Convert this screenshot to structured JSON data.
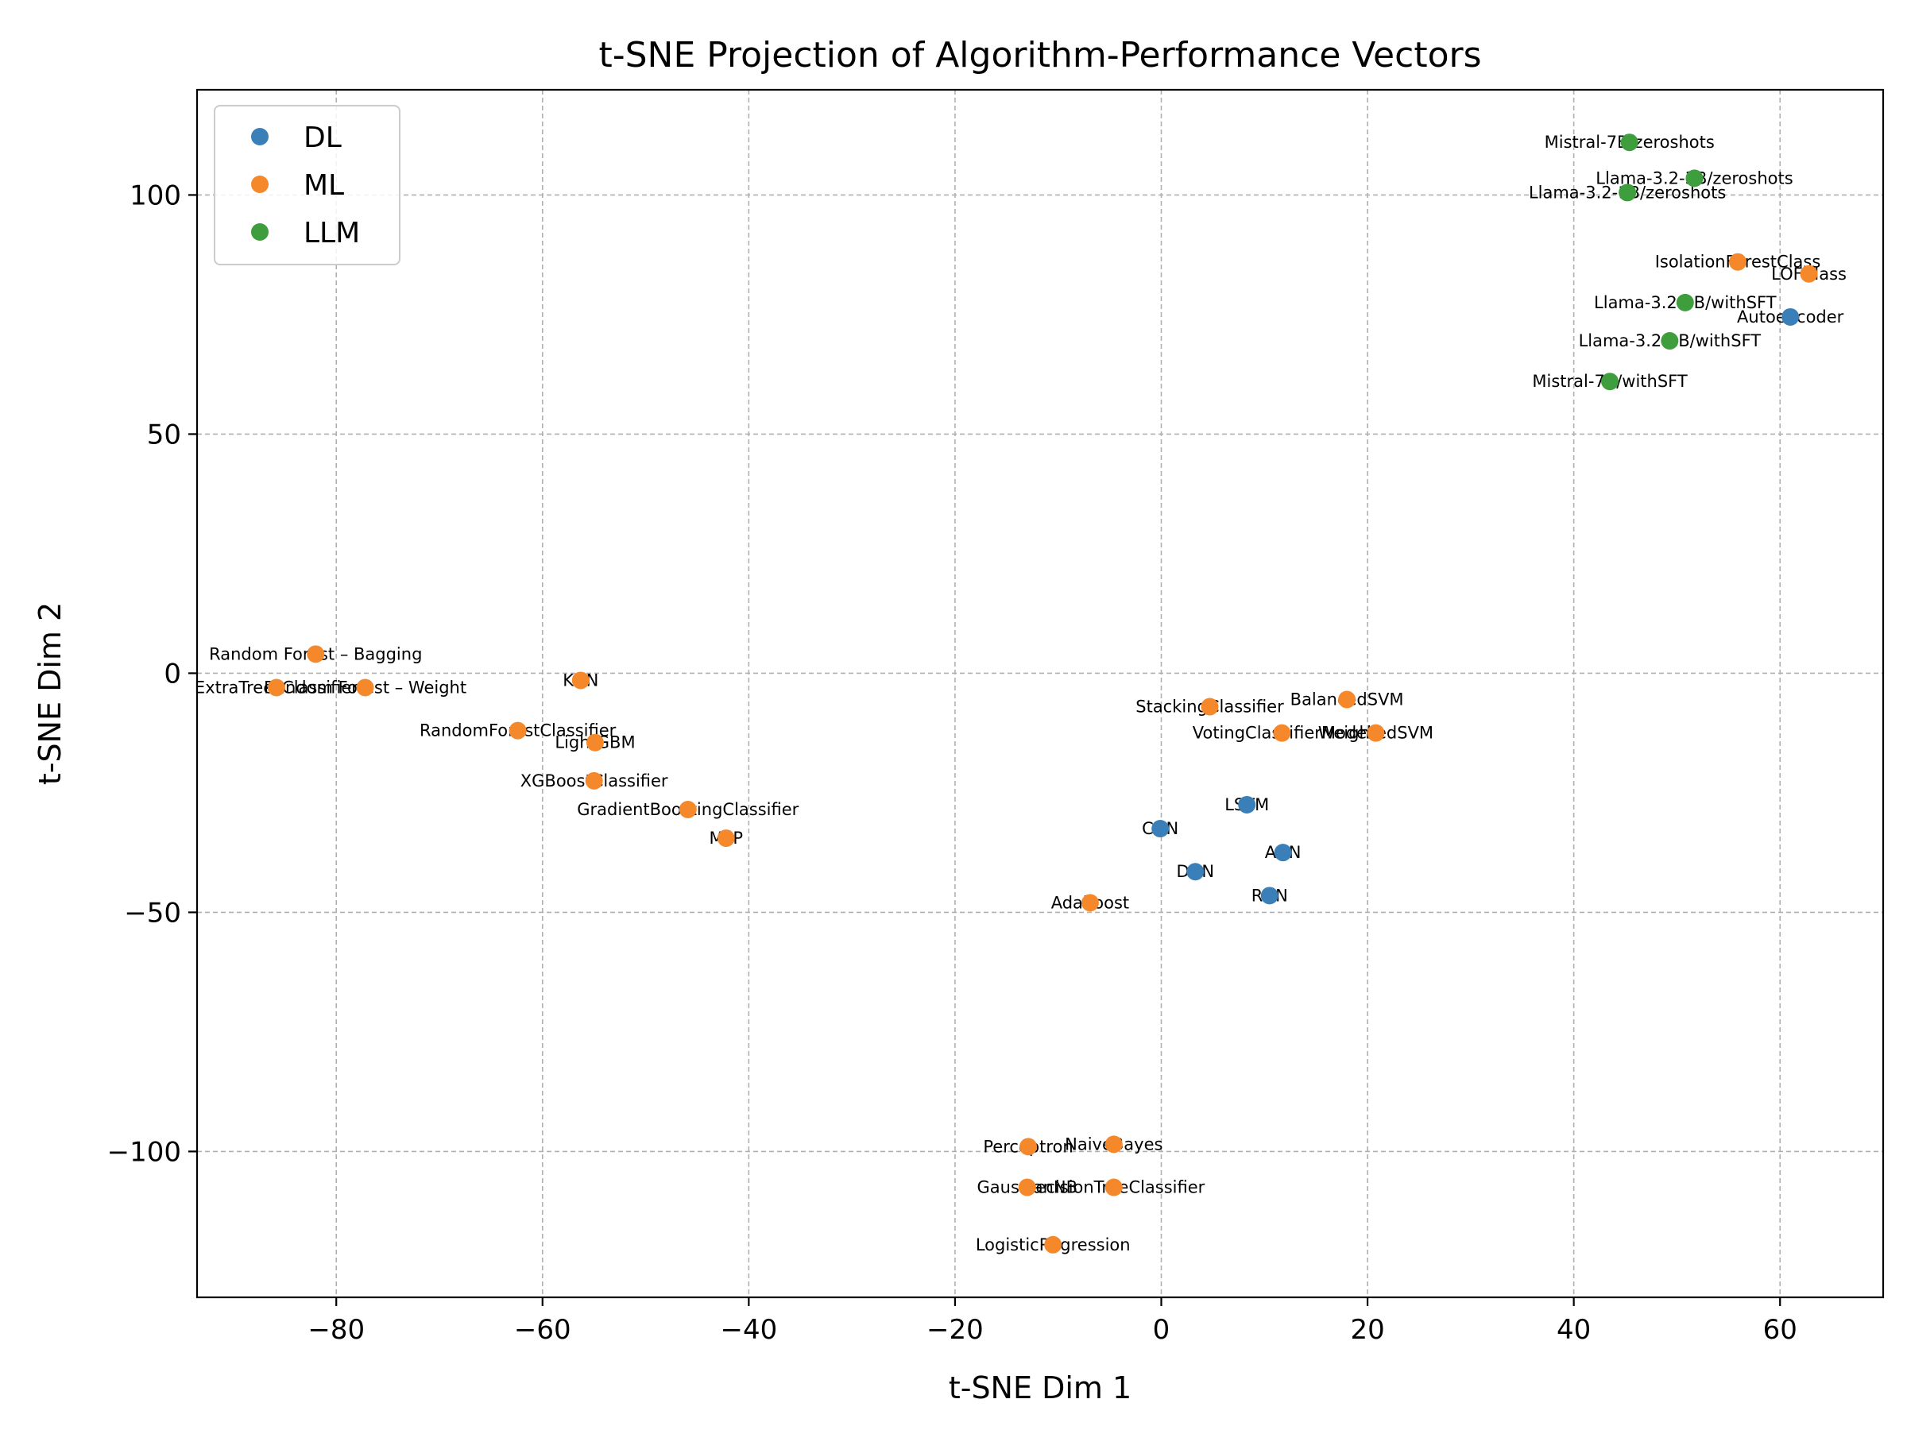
{
  "chart_data": {
    "type": "scatter",
    "title": "t-SNE Projection of Algorithm-Performance Vectors",
    "xlabel": "t-SNE Dim 1",
    "ylabel": "t-SNE Dim 2",
    "xlim": [
      -93.5,
      70
    ],
    "ylim": [
      -130.5,
      122
    ],
    "xticks": [
      -80,
      -60,
      -40,
      -20,
      0,
      20,
      40,
      60
    ],
    "xtick_labels": [
      "−80",
      "−60",
      "−40",
      "−20",
      "0",
      "20",
      "40",
      "60"
    ],
    "yticks": [
      -100,
      -50,
      0,
      50,
      100
    ],
    "ytick_labels": [
      "−100",
      "−50",
      "0",
      "50",
      "100"
    ],
    "grid": true,
    "legend": "top-left",
    "colors": {
      "DL": "#3a7fb8",
      "ML": "#f5882b",
      "LLM": "#3e9e3e"
    },
    "series": [
      {
        "name": "DL",
        "points": [
          {
            "label": "Autoencoder",
            "x": 61.0,
            "y": 74.5
          },
          {
            "label": "LSTM",
            "x": 8.3,
            "y": -27.5
          },
          {
            "label": "CNN",
            "x": -0.1,
            "y": -32.5
          },
          {
            "label": "ANN",
            "x": 11.8,
            "y": -37.5
          },
          {
            "label": "DNN",
            "x": 3.3,
            "y": -41.5
          },
          {
            "label": "RNN",
            "x": 10.5,
            "y": -46.5
          }
        ]
      },
      {
        "name": "ML",
        "points": [
          {
            "label": "IsolationForestClass",
            "x": 55.9,
            "y": 86.0
          },
          {
            "label": "LOFClass",
            "x": 62.8,
            "y": 83.5
          },
          {
            "label": "Random Forest – Bagging",
            "x": -82.0,
            "y": 4.0
          },
          {
            "label": "ExtraTreesClassifier",
            "x": -85.8,
            "y": -3.0
          },
          {
            "label": "Random Forest – Weight",
            "x": -77.2,
            "y": -3.0
          },
          {
            "label": "KNN",
            "x": -56.3,
            "y": -1.5
          },
          {
            "label": "RandomForestClassifier",
            "x": -62.4,
            "y": -12.0
          },
          {
            "label": "LightGBM",
            "x": -54.9,
            "y": -14.5
          },
          {
            "label": "XGBoostClassifier",
            "x": -55.0,
            "y": -22.5
          },
          {
            "label": "GradientBoostingClassifier",
            "x": -45.9,
            "y": -28.5
          },
          {
            "label": "MLP",
            "x": -42.2,
            "y": -34.5
          },
          {
            "label": "BalancedSVM",
            "x": 18.0,
            "y": -5.5
          },
          {
            "label": "StackingClassifier",
            "x": 4.7,
            "y": -7.0
          },
          {
            "label": "VotingClassifierModel",
            "x": 11.7,
            "y": -12.5
          },
          {
            "label": "WeightedSVM",
            "x": 20.8,
            "y": -12.5
          },
          {
            "label": "Adaboost",
            "x": -6.9,
            "y": -48.0
          },
          {
            "label": "Perceptron",
            "x": -12.9,
            "y": -99.0
          },
          {
            "label": "NaiveBayes",
            "x": -4.6,
            "y": -98.5
          },
          {
            "label": "GaussianNB",
            "x": -13.0,
            "y": -107.5
          },
          {
            "label": "DecisionTreeClassifier",
            "x": -4.6,
            "y": -107.5
          },
          {
            "label": "LogisticRegression",
            "x": -10.5,
            "y": -119.5
          }
        ]
      },
      {
        "name": "LLM",
        "points": [
          {
            "label": "Mistral-7B/zeroshots",
            "x": 45.4,
            "y": 111.0
          },
          {
            "label": "Llama-3.2-3B/zeroshots",
            "x": 51.7,
            "y": 103.5
          },
          {
            "label": "Llama-3.2-1B/zeroshots",
            "x": 45.2,
            "y": 100.5
          },
          {
            "label": "Llama-3.2-3B/withSFT",
            "x": 50.8,
            "y": 77.5
          },
          {
            "label": "Llama-3.2-1B/withSFT",
            "x": 49.3,
            "y": 69.5
          },
          {
            "label": "Mistral-7B/withSFT",
            "x": 43.5,
            "y": 61.0
          }
        ]
      }
    ]
  }
}
